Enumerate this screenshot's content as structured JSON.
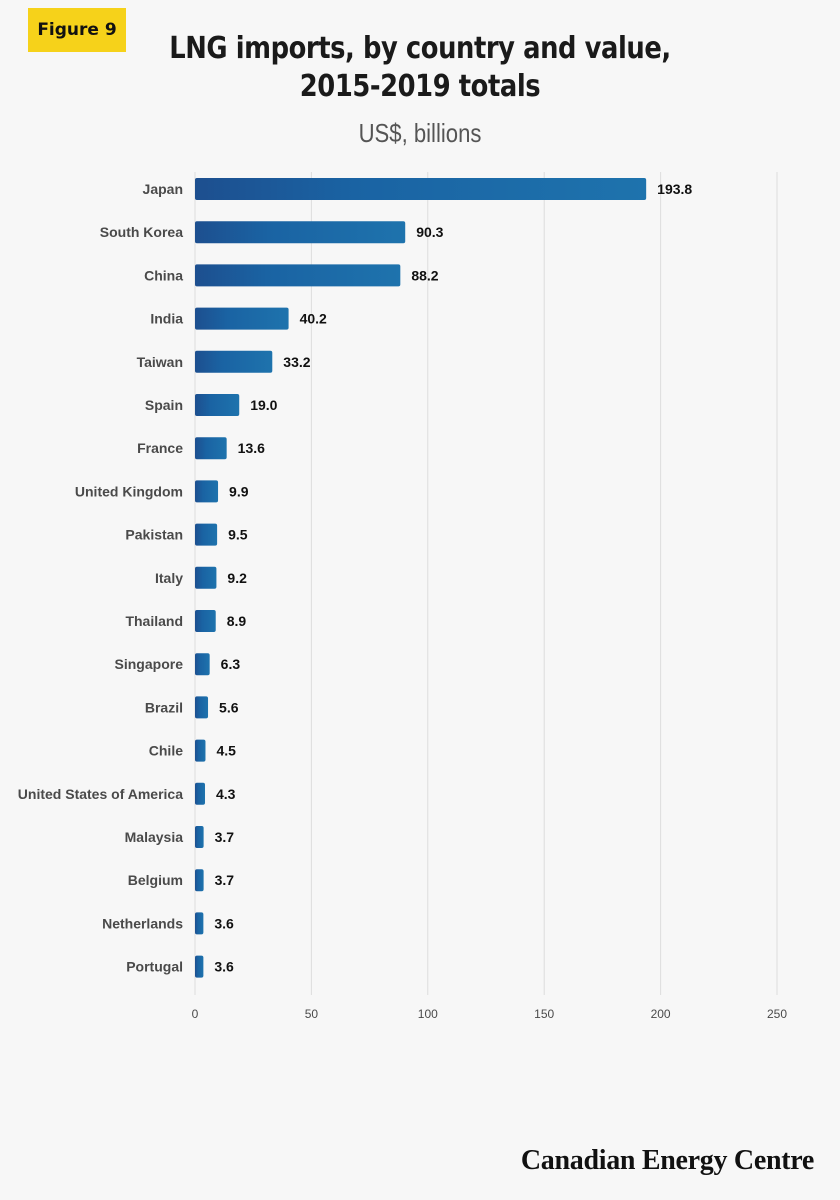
{
  "badge": "Figure 9",
  "title_line1": "LNG imports, by country and value,",
  "title_line2": "2015-2019 totals",
  "subtitle": "US$, billions",
  "footer": "Canadian Energy Centre",
  "colors": {
    "bar_dark": "#1d4f8f",
    "bar_light": "#1e73ad",
    "grid": "#dddddd",
    "badge": "#f6d21a"
  },
  "chart_data": {
    "type": "bar",
    "orientation": "horizontal",
    "title": "LNG imports, by country and value, 2015-2019 totals",
    "subtitle": "US$, billions",
    "categories": [
      "Japan",
      "South Korea",
      "China",
      "India",
      "Taiwan",
      "Spain",
      "France",
      "United Kingdom",
      "Pakistan",
      "Italy",
      "Thailand",
      "Singapore",
      "Brazil",
      "Chile",
      "United States of America",
      "Malaysia",
      "Belgium",
      "Netherlands",
      "Portugal"
    ],
    "values": [
      193.8,
      90.3,
      88.2,
      40.2,
      33.2,
      19.0,
      13.6,
      9.9,
      9.5,
      9.2,
      8.9,
      6.3,
      5.6,
      4.5,
      4.3,
      3.7,
      3.7,
      3.6,
      3.6
    ],
    "value_labels": [
      "193.8",
      "90.3",
      "88.2",
      "40.2",
      "33.2",
      "19.0",
      "13.6",
      "9.9",
      "9.5",
      "9.2",
      "8.9",
      "6.3",
      "5.6",
      "4.5",
      "4.3",
      "3.7",
      "3.7",
      "3.6",
      "3.6"
    ],
    "xlim": [
      0,
      250
    ],
    "xticks": [
      0,
      50,
      100,
      150,
      200,
      250
    ],
    "grid": true,
    "legend": "none"
  }
}
